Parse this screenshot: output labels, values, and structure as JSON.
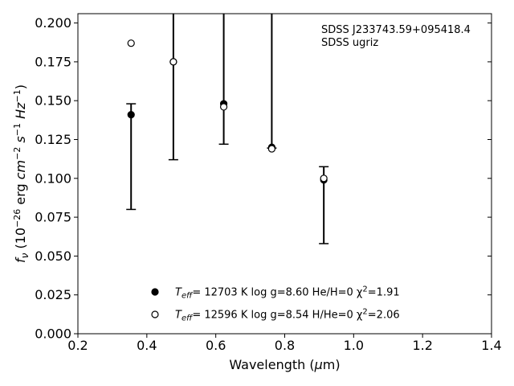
{
  "chart_data": {
    "type": "scatter",
    "xlabel": "Wavelength (μm)",
    "ylabel": "f_ν (10^-26 erg cm^-2 s^-1 Hz^-1)",
    "xlim": [
      0.2,
      1.4
    ],
    "ylim": [
      0.0,
      0.206
    ],
    "xticks": [
      "0.2",
      "0.4",
      "0.6",
      "0.8",
      "1.0",
      "1.2",
      "1.4"
    ],
    "yticks": [
      "0.000",
      "0.025",
      "0.050",
      "0.075",
      "0.100",
      "0.125",
      "0.150",
      "0.175",
      "0.200"
    ],
    "annotation": [
      "SDSS J233743.59+095418.4",
      "SDSS ugriz"
    ],
    "observed": {
      "x": [
        0.3543,
        0.477,
        0.6231,
        0.7625,
        0.9134
      ],
      "y": [
        0.141,
        0.175,
        0.148,
        0.12,
        0.099
      ],
      "err_low": [
        0.08,
        0.112,
        0.122,
        0.1195,
        0.058
      ],
      "err_high": [
        0.148,
        0.3,
        0.3,
        0.3,
        0.1075
      ]
    },
    "series": [
      {
        "marker": "filled-circle",
        "legend": {
          "pre": "T",
          "sub": "eff",
          "post": "= 12703 K  log g=8.60  He/H=0  χ",
          "sup": "2",
          "tail": "=1.91"
        },
        "x": [
          0.3543,
          0.477,
          0.6231,
          0.7625,
          0.9134
        ],
        "y": [
          0.141,
          0.175,
          0.148,
          0.12,
          0.099
        ]
      },
      {
        "marker": "open-circle",
        "legend": {
          "pre": "T",
          "sub": "eff",
          "post": "= 12596 K  log g=8.54  H/He=0  χ",
          "sup": "2",
          "tail": "=2.06"
        },
        "x": [
          0.3543,
          0.477,
          0.6231,
          0.7625,
          0.9134
        ],
        "y": [
          0.187,
          0.175,
          0.146,
          0.119,
          0.1
        ]
      }
    ]
  }
}
